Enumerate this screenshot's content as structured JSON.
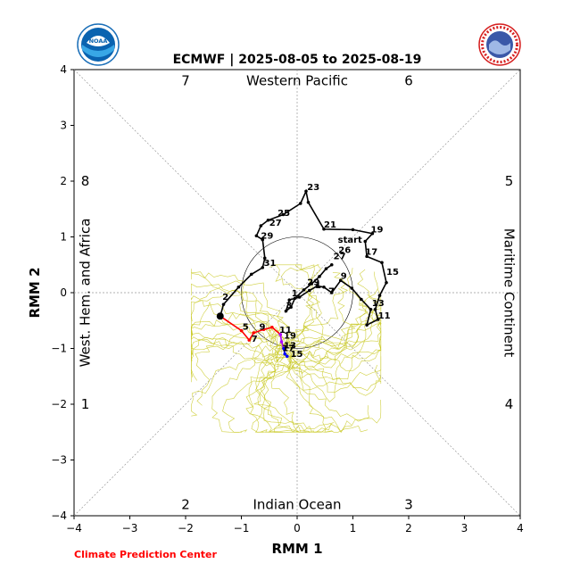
{
  "chart_data": {
    "type": "line",
    "title": "ECMWF | 2025-08-05 to 2025-08-19",
    "xlabel": "RMM 1",
    "ylabel": "RMM 2",
    "xlim": [
      -4,
      4
    ],
    "ylim": [
      -4,
      4
    ],
    "ticks": [
      -4,
      -3,
      -2,
      -1,
      0,
      1,
      2,
      3,
      4
    ],
    "phase_labels": [
      {
        "text": "1",
        "x": -3.8,
        "y": -2.0
      },
      {
        "text": "2",
        "x": -2.0,
        "y": -3.8
      },
      {
        "text": "3",
        "x": 2.0,
        "y": -3.8
      },
      {
        "text": "4",
        "x": 3.8,
        "y": -2.0
      },
      {
        "text": "5",
        "x": 3.8,
        "y": 2.0
      },
      {
        "text": "6",
        "x": 2.0,
        "y": 3.8
      },
      {
        "text": "7",
        "x": -2.0,
        "y": 3.8
      },
      {
        "text": "8",
        "x": -3.8,
        "y": 2.0
      }
    ],
    "region_labels": {
      "top": "Western Pacific",
      "bottom": "Indian Ocean",
      "left": "West. Hem. and Africa",
      "right": "Maritime Continent"
    },
    "footer": "Climate Prediction Center",
    "series": [
      {
        "color": "#000000",
        "points": [
          {
            "x": 0.62,
            "y": 0.5,
            "label": "start"
          },
          {
            "x": 0.52,
            "y": 0.43
          },
          {
            "x": 0.4,
            "y": 0.29
          },
          {
            "x": 0.26,
            "y": 0.16
          },
          {
            "x": 0.12,
            "y": 0.05
          },
          {
            "x": -0.04,
            "y": -0.1
          },
          {
            "x": -0.11,
            "y": -0.26
          },
          {
            "x": -0.2,
            "y": -0.33
          },
          {
            "x": -0.14,
            "y": -0.13
          },
          {
            "x": 0.04,
            "y": -0.08
          },
          {
            "x": 0.22,
            "y": 0.04
          },
          {
            "x": 0.36,
            "y": 0.12
          },
          {
            "x": 0.48,
            "y": 0.1
          },
          {
            "x": 0.62,
            "y": 0.0
          },
          {
            "x": 0.78,
            "y": 0.22
          },
          {
            "x": 0.98,
            "y": 0.08
          },
          {
            "x": 1.15,
            "y": -0.12
          },
          {
            "x": 1.32,
            "y": -0.3
          },
          {
            "x": 1.25,
            "y": -0.58
          },
          {
            "x": 1.45,
            "y": -0.48
          },
          {
            "x": 1.4,
            "y": -0.3
          },
          {
            "x": 1.48,
            "y": -0.05
          },
          {
            "x": 1.6,
            "y": 0.18
          },
          {
            "x": 1.52,
            "y": 0.54
          },
          {
            "x": 1.25,
            "y": 0.65
          },
          {
            "x": 1.22,
            "y": 0.92
          },
          {
            "x": 1.35,
            "y": 1.06
          },
          {
            "x": 1.0,
            "y": 1.13
          },
          {
            "x": 0.48,
            "y": 1.14
          },
          {
            "x": 0.2,
            "y": 1.62
          },
          {
            "x": 0.16,
            "y": 1.82
          },
          {
            "x": 0.06,
            "y": 1.6
          },
          {
            "x": -0.25,
            "y": 1.4
          },
          {
            "x": -0.52,
            "y": 1.3
          },
          {
            "x": -0.65,
            "y": 1.2
          },
          {
            "x": -0.73,
            "y": 1.02
          },
          {
            "x": -0.62,
            "y": 0.95
          },
          {
            "x": -0.58,
            "y": 0.62
          },
          {
            "x": -0.62,
            "y": 0.45
          },
          {
            "x": -0.82,
            "y": 0.33
          },
          {
            "x": -1.05,
            "y": 0.1
          },
          {
            "x": -1.32,
            "y": -0.21
          },
          {
            "x": -1.38,
            "y": -0.42
          }
        ]
      },
      {
        "color": "#ff0000",
        "points": [
          {
            "x": -1.38,
            "y": -0.42
          },
          {
            "x": -1.0,
            "y": -0.68
          },
          {
            "x": -0.86,
            "y": -0.85
          },
          {
            "x": -0.78,
            "y": -0.72
          },
          {
            "x": -0.6,
            "y": -0.66
          },
          {
            "x": -0.45,
            "y": -0.62
          },
          {
            "x": -0.3,
            "y": -0.75
          }
        ]
      },
      {
        "color": "#aa00ff",
        "points": [
          {
            "x": -0.3,
            "y": -0.75
          },
          {
            "x": -0.28,
            "y": -0.88
          },
          {
            "x": -0.24,
            "y": -1.0
          }
        ]
      },
      {
        "color": "#0000ff",
        "points": [
          {
            "x": -0.24,
            "y": -1.0
          },
          {
            "x": -0.22,
            "y": -1.1
          },
          {
            "x": -0.18,
            "y": -1.14
          }
        ]
      }
    ],
    "day_labels": [
      {
        "text": "23",
        "x": 0.18,
        "y": 1.84
      },
      {
        "text": "21",
        "x": 0.48,
        "y": 1.17
      },
      {
        "text": "19",
        "x": 1.32,
        "y": 1.08
      },
      {
        "text": "25",
        "x": -0.35,
        "y": 1.38
      },
      {
        "text": "27",
        "x": -0.5,
        "y": 1.2
      },
      {
        "text": "29",
        "x": -0.65,
        "y": 0.97
      },
      {
        "text": "start",
        "x": 0.73,
        "y": 0.9
      },
      {
        "text": "17",
        "x": 1.22,
        "y": 0.68
      },
      {
        "text": "26",
        "x": 0.74,
        "y": 0.71
      },
      {
        "text": "27",
        "x": 0.65,
        "y": 0.6
      },
      {
        "text": "15",
        "x": 1.6,
        "y": 0.32
      },
      {
        "text": "31",
        "x": -0.6,
        "y": 0.48
      },
      {
        "text": "9",
        "x": 0.78,
        "y": 0.25
      },
      {
        "text": "29",
        "x": 0.18,
        "y": 0.14
      },
      {
        "text": "1",
        "x": 0.32,
        "y": 0.08
      },
      {
        "text": "7",
        "x": 0.56,
        "y": -0.02
      },
      {
        "text": "1",
        "x": -0.1,
        "y": -0.06
      },
      {
        "text": "3",
        "x": -0.2,
        "y": -0.28
      },
      {
        "text": "2",
        "x": -1.34,
        "y": -0.13
      },
      {
        "text": "13",
        "x": 1.34,
        "y": -0.24
      },
      {
        "text": "11",
        "x": 1.45,
        "y": -0.46
      },
      {
        "text": "5",
        "x": -0.98,
        "y": -0.66
      },
      {
        "text": "9",
        "x": -0.68,
        "y": -0.66
      },
      {
        "text": "7",
        "x": -0.82,
        "y": -0.88
      },
      {
        "text": "11",
        "x": -0.32,
        "y": -0.72
      },
      {
        "text": "19",
        "x": -0.24,
        "y": -0.82
      },
      {
        "text": "17",
        "x": -0.27,
        "y": -1.05
      },
      {
        "text": "15",
        "x": -0.12,
        "y": -1.15
      },
      {
        "text": "13",
        "x": -0.24,
        "y": -1.0
      }
    ]
  }
}
